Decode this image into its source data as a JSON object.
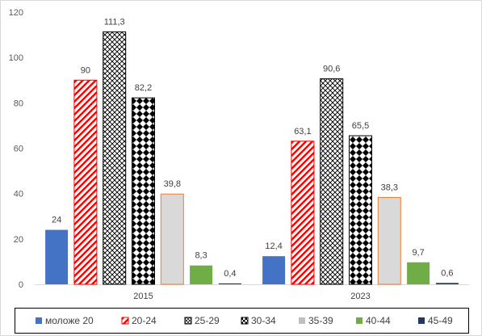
{
  "chart_data": {
    "type": "bar",
    "categories": [
      "2015",
      "2023"
    ],
    "series": [
      {
        "name": "моложе 20",
        "values": [
          24,
          12.4
        ],
        "labels": [
          "24",
          "12,4"
        ],
        "color": "#4472c4",
        "pattern": "solid"
      },
      {
        "name": "20-24",
        "values": [
          90,
          63.1
        ],
        "labels": [
          "90",
          "63,1"
        ],
        "color": "#ff0000",
        "pattern": "diagonal"
      },
      {
        "name": "25-29",
        "values": [
          111.3,
          90.6
        ],
        "labels": [
          "111,3",
          "90,6"
        ],
        "color": "#000000",
        "pattern": "lattice"
      },
      {
        "name": "30-34",
        "values": [
          82.2,
          65.5
        ],
        "labels": [
          "82,2",
          "65,5"
        ],
        "color": "#000000",
        "pattern": "checker"
      },
      {
        "name": "35-39",
        "values": [
          39.8,
          38.3
        ],
        "labels": [
          "39,8",
          "38,3"
        ],
        "color": "#d9d9d9",
        "pattern": "solid-outlined"
      },
      {
        "name": "40-44",
        "values": [
          8.3,
          9.7
        ],
        "labels": [
          "8,3",
          "9,7"
        ],
        "color": "#70ad47",
        "pattern": "solid"
      },
      {
        "name": "45-49",
        "values": [
          0.4,
          0.6
        ],
        "labels": [
          "0,4",
          "0,6"
        ],
        "color": "#1f3864",
        "pattern": "solid"
      }
    ],
    "ylim": [
      0,
      120
    ],
    "yticks": [
      0,
      20,
      40,
      60,
      80,
      100,
      120
    ],
    "grid": false,
    "legend_position": "bottom",
    "title": "",
    "xlabel": "",
    "ylabel": ""
  }
}
